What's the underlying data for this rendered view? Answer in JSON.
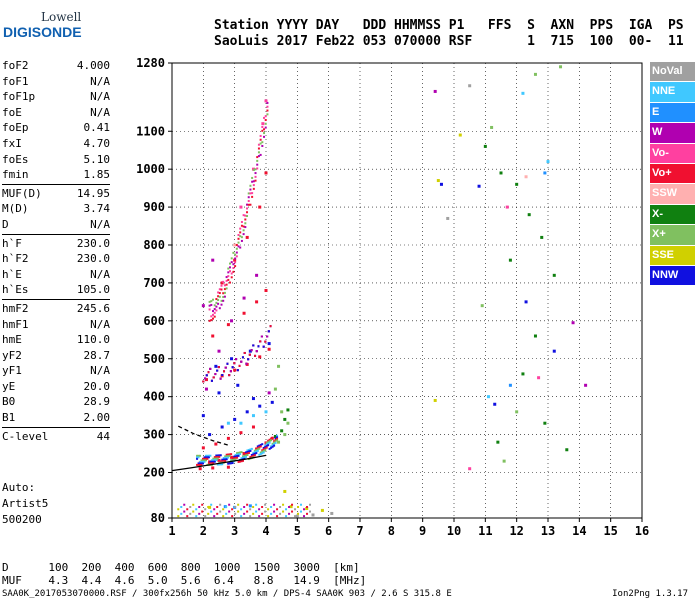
{
  "logo": {
    "line1": "Lowell",
    "line2": "DIGISONDE"
  },
  "header": {
    "line1": "Station YYYY DAY   DDD HHMMSS P1   FFS  S  AXN  PPS  IGA  PS",
    "line2": "SaoLuis 2017 Feb22 053 070000 RSF       1  715  100  00-  11"
  },
  "params": {
    "group1": [
      [
        "foF2",
        "4.000"
      ],
      [
        "foF1",
        "N/A"
      ],
      [
        "foF1p",
        "N/A"
      ],
      [
        "foE",
        "N/A"
      ],
      [
        "foEp",
        "0.41"
      ],
      [
        "fxI",
        "4.70"
      ],
      [
        "foEs",
        "5.10"
      ],
      [
        "fmin",
        "1.85"
      ]
    ],
    "group2": [
      [
        "MUF(D)",
        "14.95"
      ],
      [
        "M(D)",
        "3.74"
      ],
      [
        "D",
        "N/A"
      ]
    ],
    "group3": [
      [
        "h`F",
        "230.0"
      ],
      [
        "h`F2",
        "230.0"
      ],
      [
        "h`E",
        "N/A"
      ],
      [
        "h`Es",
        "105.0"
      ]
    ],
    "group4": [
      [
        "hmF2",
        "245.6"
      ],
      [
        "hmF1",
        "N/A"
      ],
      [
        "hmE",
        "110.0"
      ],
      [
        "yF2",
        "28.7"
      ],
      [
        "yF1",
        "N/A"
      ],
      [
        "yE",
        "20.0"
      ],
      [
        "B0",
        "28.9"
      ],
      [
        "B1",
        "2.00"
      ]
    ],
    "group5": [
      [
        "C-level",
        "44"
      ]
    ]
  },
  "auto": {
    "line1": "Auto:",
    "line2": "Artist5",
    "line3": "500200"
  },
  "dmuf": {
    "line1": "D      100  200  400  600  800  1000  1500  3000  [km]",
    "line2": "MUF    4.3  4.4  4.6  5.0  5.6  6.4   8.8   14.9  [MHz]"
  },
  "footer": "SAA0K_2017053070000.RSF / 300fx256h 50 kHz 5.0 km / DPS-4 SAA0K 903 / 2.6 S 315.8 E",
  "version": "Ion2Png 1.3.17",
  "legend": [
    {
      "label": "NoVal",
      "color": "#a0a0a0"
    },
    {
      "label": "NNE",
      "color": "#40c8ff"
    },
    {
      "label": "E",
      "color": "#2090ff"
    },
    {
      "label": "W",
      "color": "#b000b0"
    },
    {
      "label": "Vo-",
      "color": "#ff40a0"
    },
    {
      "label": "Vo+",
      "color": "#f01030"
    },
    {
      "label": "SSW",
      "color": "#ffb0b0"
    },
    {
      "label": "X-",
      "color": "#108010"
    },
    {
      "label": "X+",
      "color": "#80c060"
    },
    {
      "label": "SSE",
      "color": "#d0d000"
    },
    {
      "label": "NNW",
      "color": "#1010e0"
    }
  ],
  "chart_data": {
    "type": "scatter",
    "xlabel": "",
    "ylabel": "",
    "xlim": [
      1,
      16
    ],
    "ylim": [
      80,
      1280
    ],
    "x_ticks": [
      1,
      2,
      3,
      4,
      5,
      6,
      7,
      8,
      9,
      10,
      11,
      12,
      13,
      14,
      15,
      16
    ],
    "y_ticks": [
      80,
      200,
      300,
      400,
      500,
      600,
      700,
      800,
      900,
      1000,
      1100,
      1280
    ],
    "grid": true,
    "series": [
      {
        "name": "Vo+",
        "color": "#f01030",
        "points": [
          [
            1.9,
            225
          ],
          [
            2.2,
            228
          ],
          [
            2.5,
            232
          ],
          [
            2.9,
            240
          ],
          [
            3.3,
            250
          ],
          [
            3.7,
            262
          ],
          [
            4.0,
            278
          ],
          [
            4.2,
            290
          ],
          [
            2.0,
            265
          ],
          [
            2.4,
            275
          ],
          [
            2.8,
            290
          ],
          [
            3.2,
            305
          ],
          [
            3.6,
            320
          ],
          [
            2.1,
            445
          ],
          [
            2.6,
            455
          ],
          [
            3.0,
            470
          ],
          [
            3.4,
            485
          ],
          [
            3.8,
            505
          ],
          [
            4.1,
            525
          ],
          [
            2.3,
            560
          ],
          [
            2.8,
            590
          ],
          [
            3.3,
            620
          ],
          [
            3.7,
            650
          ],
          [
            4.0,
            680
          ],
          [
            2.6,
            700
          ],
          [
            3.0,
            760
          ],
          [
            3.4,
            820
          ],
          [
            3.8,
            900
          ],
          [
            4.0,
            990
          ],
          [
            1.9,
            210
          ],
          [
            2.3,
            212
          ],
          [
            2.8,
            214
          ]
        ]
      },
      {
        "name": "NNW",
        "color": "#1010e0",
        "points": [
          [
            2.2,
            300
          ],
          [
            2.6,
            320
          ],
          [
            3.0,
            340
          ],
          [
            3.4,
            360
          ],
          [
            3.8,
            375
          ],
          [
            4.2,
            385
          ],
          [
            2.4,
            480
          ],
          [
            2.9,
            500
          ],
          [
            3.5,
            520
          ],
          [
            4.1,
            540
          ],
          [
            2.0,
            350
          ],
          [
            2.5,
            410
          ],
          [
            3.1,
            430
          ],
          [
            3.6,
            395
          ],
          [
            9.6,
            960
          ],
          [
            10.8,
            955
          ],
          [
            12.3,
            650
          ],
          [
            13.2,
            520
          ],
          [
            11.3,
            380
          ]
        ]
      },
      {
        "name": "W",
        "color": "#b000b0",
        "points": [
          [
            2.1,
            420
          ],
          [
            2.5,
            520
          ],
          [
            2.9,
            600
          ],
          [
            3.3,
            660
          ],
          [
            3.7,
            720
          ],
          [
            2.0,
            640
          ],
          [
            2.3,
            760
          ],
          [
            4.1,
            410
          ],
          [
            13.8,
            595
          ],
          [
            9.4,
            1205
          ],
          [
            14.2,
            430
          ]
        ]
      },
      {
        "name": "X-",
        "color": "#108010",
        "points": [
          [
            4.5,
            310
          ],
          [
            4.6,
            340
          ],
          [
            4.7,
            365
          ],
          [
            4.3,
            295
          ],
          [
            11.0,
            1060
          ],
          [
            11.5,
            990
          ],
          [
            12.0,
            960
          ],
          [
            12.4,
            880
          ],
          [
            12.8,
            820
          ],
          [
            13.2,
            720
          ],
          [
            11.8,
            760
          ],
          [
            12.6,
            560
          ],
          [
            12.2,
            460
          ],
          [
            11.4,
            280
          ],
          [
            12.9,
            330
          ],
          [
            13.6,
            260
          ]
        ]
      },
      {
        "name": "X+",
        "color": "#80c060",
        "points": [
          [
            4.4,
            280
          ],
          [
            4.6,
            300
          ],
          [
            4.7,
            330
          ],
          [
            4.5,
            360
          ],
          [
            4.3,
            420
          ],
          [
            4.4,
            480
          ],
          [
            11.2,
            1110
          ],
          [
            12.6,
            1250
          ],
          [
            13.4,
            1270
          ],
          [
            10.9,
            640
          ],
          [
            12.0,
            360
          ],
          [
            11.6,
            230
          ]
        ]
      },
      {
        "name": "NNE",
        "color": "#40c8ff",
        "points": [
          [
            3.2,
            330
          ],
          [
            3.6,
            350
          ],
          [
            2.8,
            330
          ],
          [
            4.0,
            360
          ],
          [
            13.0,
            1020
          ],
          [
            12.2,
            1200
          ],
          [
            11.1,
            400
          ]
        ]
      },
      {
        "name": "E",
        "color": "#2090ff",
        "points": [
          [
            2.7,
            110
          ],
          [
            3.0,
            108
          ],
          [
            3.5,
            112
          ],
          [
            12.9,
            990
          ],
          [
            11.8,
            430
          ]
        ]
      },
      {
        "name": "Vo-",
        "color": "#ff40a0",
        "points": [
          [
            3.9,
            1120
          ],
          [
            4.0,
            1180
          ],
          [
            3.6,
            1000
          ],
          [
            3.2,
            900
          ],
          [
            11.7,
            900
          ],
          [
            12.7,
            450
          ],
          [
            10.5,
            210
          ]
        ]
      },
      {
        "name": "SSW",
        "color": "#ffb0b0",
        "points": [
          [
            12.3,
            980
          ],
          [
            3.0,
            800
          ]
        ]
      },
      {
        "name": "SSE",
        "color": "#d0d000",
        "points": [
          [
            4.8,
            110
          ],
          [
            5.3,
            105
          ],
          [
            5.8,
            100
          ],
          [
            2.2,
            108
          ],
          [
            4.6,
            150
          ],
          [
            9.4,
            390
          ],
          [
            10.2,
            1090
          ],
          [
            9.5,
            970
          ]
        ]
      },
      {
        "name": "NoVal",
        "color": "#a0a0a0",
        "points": [
          [
            5.0,
            85
          ],
          [
            5.5,
            88
          ],
          [
            6.1,
            92
          ],
          [
            10.5,
            1220
          ],
          [
            9.8,
            870
          ]
        ]
      }
    ],
    "traces": [
      {
        "name": "F2-trace",
        "color": "#000",
        "points": [
          [
            1.0,
            205
          ],
          [
            1.6,
            212
          ],
          [
            2.2,
            220
          ],
          [
            2.8,
            228
          ],
          [
            3.4,
            236
          ],
          [
            4.0,
            245
          ]
        ]
      },
      {
        "name": "F-trace",
        "color": "#000",
        "points": [
          [
            1.2,
            322
          ],
          [
            1.7,
            302
          ],
          [
            2.3,
            284
          ],
          [
            2.8,
            272
          ]
        ]
      }
    ]
  }
}
